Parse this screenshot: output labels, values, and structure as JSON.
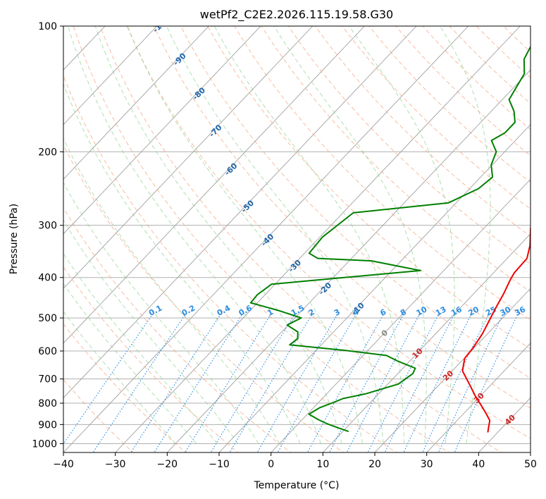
{
  "chart_data": {
    "type": "skew-t",
    "title": "wetPf2_C2E2.2026.115.19.58.G30",
    "xlabel": "Temperature (°C)",
    "ylabel": "Pressure (hPa)",
    "xlim": [
      -40,
      50
    ],
    "ylim": [
      1050,
      100
    ],
    "x_ticks": [
      "−40",
      "−30",
      "−20",
      "−10",
      "0",
      "10",
      "20",
      "30",
      "40",
      "50"
    ],
    "x_tick_values": [
      -40,
      -30,
      -20,
      -10,
      0,
      10,
      20,
      30,
      40,
      50
    ],
    "y_ticks": [
      "1000",
      "900",
      "800",
      "700",
      "600",
      "500",
      "400",
      "300",
      "200",
      "100"
    ],
    "y_tick_values": [
      1000,
      900,
      800,
      700,
      600,
      500,
      400,
      300,
      200,
      100
    ],
    "series": [
      {
        "name": "Temperature",
        "color": "#ee0000",
        "points": [
          [
            38.1,
            940
          ],
          [
            37.2,
            910
          ],
          [
            36.3,
            880
          ],
          [
            34.5,
            850
          ],
          [
            31.9,
            810
          ],
          [
            29.1,
            770
          ],
          [
            25.7,
            720
          ],
          [
            22.0,
            670
          ],
          [
            20.1,
            625
          ],
          [
            19.8,
            590
          ],
          [
            19.0,
            545
          ],
          [
            17.7,
            500
          ],
          [
            16.7,
            468
          ],
          [
            15.8,
            438
          ],
          [
            14.5,
            405
          ],
          [
            14.0,
            390
          ],
          [
            13.8,
            360
          ],
          [
            12.0,
            335
          ],
          [
            9.0,
            305
          ],
          [
            7.0,
            280
          ],
          [
            4.6,
            250
          ],
          [
            2.9,
            222
          ],
          [
            2.6,
            205
          ],
          [
            4.0,
            190
          ],
          [
            6.5,
            178
          ],
          [
            9.0,
            165
          ],
          [
            10.8,
            148
          ],
          [
            9.4,
            138
          ],
          [
            7.1,
            130
          ],
          [
            6.5,
            120
          ],
          [
            6.4,
            110
          ],
          [
            6.1,
            100
          ]
        ]
      },
      {
        "name": "Dewpoint",
        "color": "#008000",
        "points": [
          [
            11.1,
            935
          ],
          [
            8.2,
            915
          ],
          [
            5.4,
            895
          ],
          [
            3.0,
            875
          ],
          [
            0.3,
            850
          ],
          [
            1.2,
            820
          ],
          [
            3.0,
            795
          ],
          [
            4.0,
            780
          ],
          [
            7.5,
            760
          ],
          [
            12.0,
            720
          ],
          [
            12.9,
            680
          ],
          [
            12.4,
            660
          ],
          [
            7.8,
            635
          ],
          [
            4.5,
            615
          ],
          [
            -4.3,
            598
          ],
          [
            -16.1,
            580
          ],
          [
            -15.7,
            560
          ],
          [
            -16.9,
            540
          ],
          [
            -20.2,
            520
          ],
          [
            -18.8,
            500
          ],
          [
            -24.5,
            480
          ],
          [
            -31.3,
            460
          ],
          [
            -31.5,
            440
          ],
          [
            -30.7,
            415
          ],
          [
            -4.5,
            385
          ],
          [
            -15.7,
            365
          ],
          [
            -26.5,
            360
          ],
          [
            -29.1,
            350
          ],
          [
            -29.5,
            320
          ],
          [
            -28.0,
            280
          ],
          [
            -11.5,
            265
          ],
          [
            -8.3,
            245
          ],
          [
            -7.7,
            230
          ],
          [
            -10.2,
            215
          ],
          [
            -11.6,
            200
          ],
          [
            -14.6,
            188
          ],
          [
            -13.4,
            180
          ],
          [
            -13.4,
            170
          ],
          [
            -15.6,
            160
          ],
          [
            -18.7,
            150
          ],
          [
            -20.5,
            130
          ],
          [
            -23.2,
            120
          ],
          [
            -24.5,
            110
          ],
          [
            -26.0,
            100
          ]
        ]
      }
    ],
    "dry_adiabats": {
      "style": "dashed",
      "color": "#f4a582"
    },
    "moist_adiabats": {
      "style": "dashed",
      "color": "#8fd18f"
    },
    "mixing_ratio_lines": {
      "style": "dotted",
      "color": "#1e88e5",
      "values": [
        0.1,
        0.2,
        0.4,
        0.6,
        1,
        1.5,
        2,
        3,
        4,
        6,
        8,
        10,
        13,
        16,
        20,
        25,
        30,
        36
      ],
      "labels": [
        "0.1",
        "0.2",
        "0.4",
        "0.6",
        "1",
        "1.5",
        "2",
        "3",
        "4",
        "6",
        "8",
        "10",
        "13",
        "16",
        "20",
        "25",
        "30",
        "36"
      ]
    },
    "isotherm_labels": {
      "color": "#2266aa",
      "points": [
        {
          "text": "-100",
          "T": -100,
          "p": 100
        },
        {
          "text": "-90",
          "T": -90,
          "p": 120
        },
        {
          "text": "-80",
          "T": -80,
          "p": 145
        },
        {
          "text": "-70",
          "T": -70,
          "p": 178
        },
        {
          "text": "-60",
          "T": -60,
          "p": 220
        },
        {
          "text": "-50",
          "T": -50,
          "p": 270
        },
        {
          "text": "-40",
          "T": -40,
          "p": 325
        },
        {
          "text": "-30",
          "T": -30,
          "p": 375
        },
        {
          "text": "-20",
          "T": -20,
          "p": 425
        },
        {
          "text": "-10",
          "T": -10,
          "p": 475
        }
      ]
    },
    "warm_isotherm_labels": {
      "color": "#cc2222",
      "points": [
        {
          "text": "0",
          "T": 0,
          "p": 540,
          "color": "#888888"
        },
        {
          "text": "10",
          "T": 10,
          "p": 610,
          "color": "#cc2222"
        },
        {
          "text": "20",
          "T": 20,
          "p": 690,
          "color": "#cc2222"
        },
        {
          "text": "30",
          "T": 30,
          "p": 780,
          "color": "#cc2222"
        },
        {
          "text": "40",
          "T": 40,
          "p": 880,
          "color": "#cc2222"
        }
      ]
    }
  }
}
